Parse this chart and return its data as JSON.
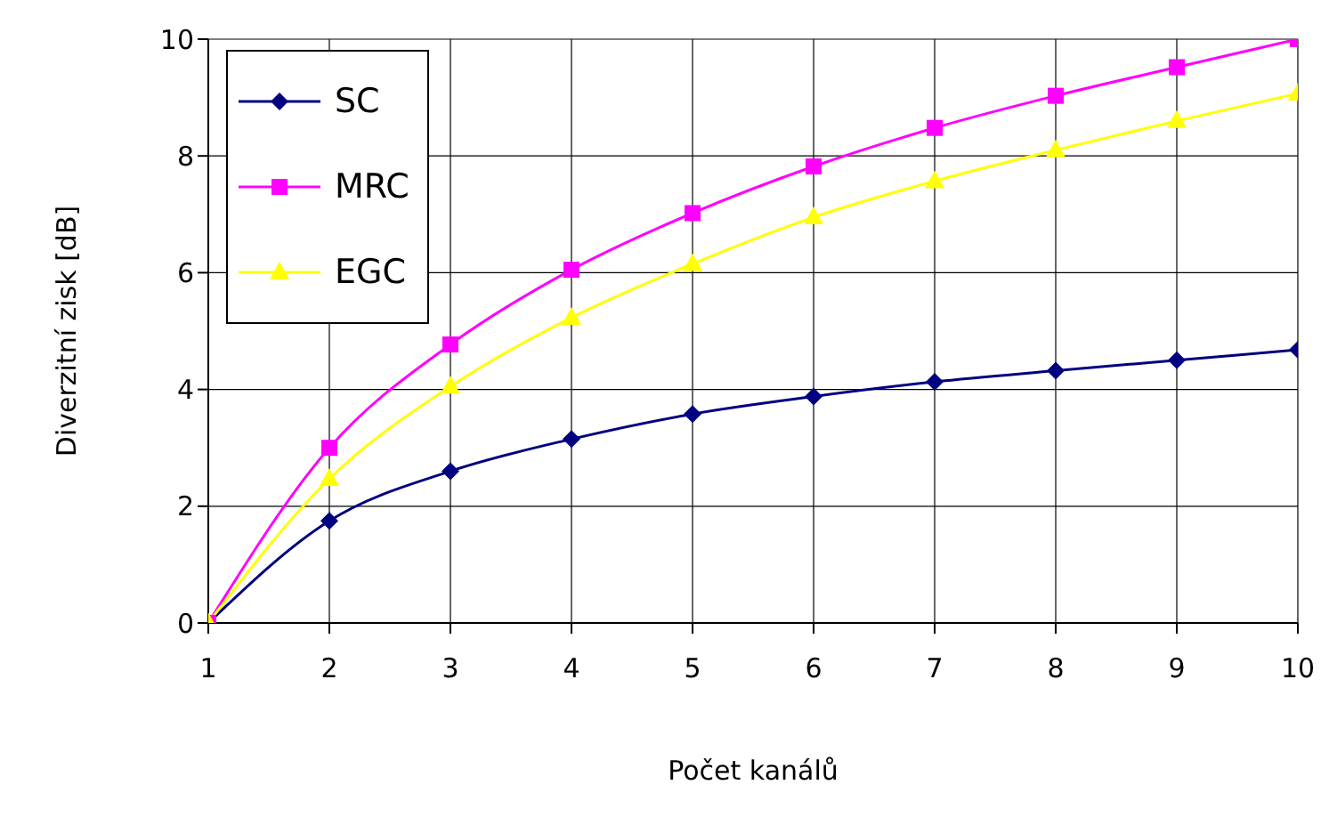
{
  "chart_data": {
    "type": "line",
    "xlabel": "Počet kanálů",
    "ylabel": "Diverzitní zisk [dB]",
    "x": [
      1,
      2,
      3,
      4,
      5,
      6,
      7,
      8,
      9,
      10
    ],
    "xlim": [
      1,
      10
    ],
    "xticks": [
      1,
      2,
      3,
      4,
      5,
      6,
      7,
      8,
      9,
      10
    ],
    "ylim": [
      0,
      10
    ],
    "yticks": [
      0,
      2,
      4,
      6,
      8,
      10
    ],
    "grid": true,
    "legend": "top left",
    "series": [
      {
        "name": "SC",
        "color": "#000080",
        "marker": "diamond",
        "values": [
          0,
          1.75,
          2.6,
          3.15,
          3.58,
          3.88,
          4.13,
          4.32,
          4.5,
          4.68
        ]
      },
      {
        "name": "MRC",
        "color": "#ff00ff",
        "marker": "square",
        "values": [
          0,
          3.0,
          4.77,
          6.05,
          7.02,
          7.82,
          8.48,
          9.03,
          9.52,
          10
        ]
      },
      {
        "name": "EGC",
        "color": "#ffff00",
        "marker": "triangle",
        "values": [
          0,
          2.47,
          4.05,
          5.23,
          6.15,
          6.95,
          7.57,
          8.1,
          8.6,
          9.07
        ]
      }
    ]
  }
}
